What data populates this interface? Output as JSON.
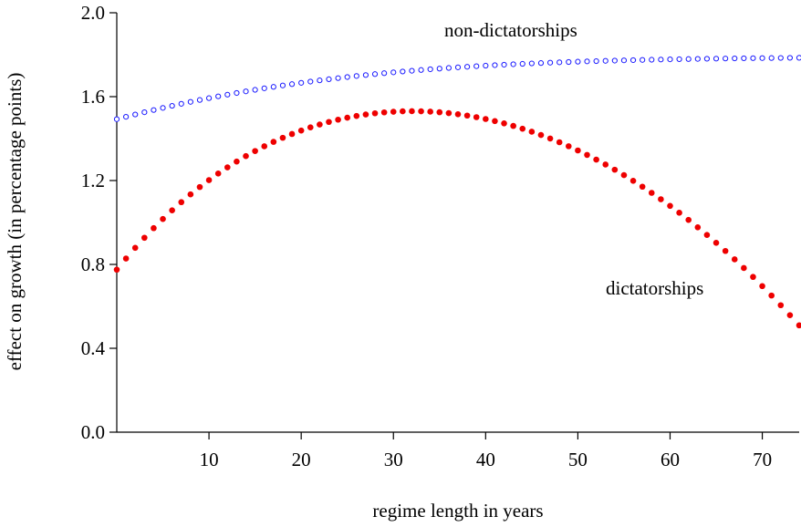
{
  "chart_data": {
    "type": "scatter",
    "title": "",
    "xlabel": "regime length in years",
    "ylabel": "effect on growth (in percentage points)",
    "xlim": [
      0,
      74
    ],
    "ylim": [
      0,
      2.0
    ],
    "xticks": [
      "10",
      "20",
      "30",
      "40",
      "50",
      "60",
      "70"
    ],
    "xtick_values": [
      10,
      20,
      30,
      40,
      50,
      60,
      70
    ],
    "yticks": [
      "0.0",
      "0.4",
      "0.8",
      "1.2",
      "1.6",
      "2.0"
    ],
    "ytick_values": [
      0.0,
      0.4,
      0.8,
      1.2,
      1.6,
      2.0
    ],
    "grid": false,
    "series": [
      {
        "name": "non-dictatorships",
        "marker": "open-circle",
        "color": "#1a1aff",
        "x": [
          0,
          1,
          2,
          3,
          4,
          5,
          6,
          7,
          8,
          9,
          10,
          11,
          12,
          13,
          14,
          15,
          16,
          17,
          18,
          19,
          20,
          21,
          22,
          23,
          24,
          25,
          26,
          27,
          28,
          29,
          30,
          31,
          32,
          33,
          34,
          35,
          36,
          37,
          38,
          39,
          40,
          41,
          42,
          43,
          44,
          45,
          46,
          47,
          48,
          49,
          50,
          51,
          52,
          53,
          54,
          55,
          56,
          57,
          58,
          59,
          60,
          61,
          62,
          63,
          64,
          65,
          66,
          67,
          68,
          69,
          70,
          71,
          72,
          73,
          74
        ],
        "y": [
          1.4925,
          1.5039,
          1.5149,
          1.5257,
          1.5361,
          1.5463,
          1.5562,
          1.5658,
          1.5751,
          1.5841,
          1.5929,
          1.6013,
          1.6095,
          1.6175,
          1.6251,
          1.6325,
          1.6397,
          1.6466,
          1.6533,
          1.6597,
          1.6659,
          1.6719,
          1.6776,
          1.6831,
          1.6884,
          1.6935,
          1.6984,
          1.703,
          1.7075,
          1.7118,
          1.7159,
          1.7198,
          1.7235,
          1.7271,
          1.7305,
          1.7337,
          1.7368,
          1.7397,
          1.7425,
          1.7452,
          1.7477,
          1.7501,
          1.7523,
          1.7545,
          1.7565,
          1.7585,
          1.7603,
          1.762,
          1.7637,
          1.7652,
          1.7667,
          1.7681,
          1.7694,
          1.7707,
          1.7719,
          1.773,
          1.7741,
          1.7751,
          1.776,
          1.7769,
          1.7778,
          1.7786,
          1.7793,
          1.78,
          1.7807,
          1.7813,
          1.7819,
          1.7824,
          1.7829,
          1.7834,
          1.7838,
          1.7842,
          1.7846,
          1.785,
          1.7853
        ]
      },
      {
        "name": "dictatorships",
        "marker": "filled-circle",
        "color": "#ee0000",
        "x": [
          0,
          1,
          2,
          3,
          4,
          5,
          6,
          7,
          8,
          9,
          10,
          11,
          12,
          13,
          14,
          15,
          16,
          17,
          18,
          19,
          20,
          21,
          22,
          23,
          24,
          25,
          26,
          27,
          28,
          29,
          30,
          31,
          32,
          33,
          34,
          35,
          36,
          37,
          38,
          39,
          40,
          41,
          42,
          43,
          44,
          45,
          46,
          47,
          48,
          49,
          50,
          51,
          52,
          53,
          54,
          55,
          56,
          57,
          58,
          59,
          60,
          61,
          62,
          63,
          64,
          65,
          66,
          67,
          68,
          69,
          70,
          71,
          72,
          73,
          74
        ],
        "y": [
          0.775,
          0.8282,
          0.8789,
          0.9271,
          0.9729,
          1.0164,
          1.0577,
          1.0968,
          1.1339,
          1.169,
          1.2021,
          1.2334,
          1.2628,
          1.2905,
          1.3164,
          1.3407,
          1.3633,
          1.3843,
          1.4038,
          1.4218,
          1.4383,
          1.4534,
          1.467,
          1.4793,
          1.4902,
          1.4997,
          1.508,
          1.5149,
          1.5206,
          1.525,
          1.5281,
          1.53,
          1.5307,
          1.5302,
          1.5285,
          1.5256,
          1.5215,
          1.5162,
          1.5098,
          1.5022,
          1.4935,
          1.4836,
          1.4726,
          1.4604,
          1.4471,
          1.4327,
          1.4171,
          1.4004,
          1.3826,
          1.3636,
          1.3435,
          1.3222,
          1.2998,
          1.2763,
          1.2516,
          1.2258,
          1.1988,
          1.1706,
          1.1413,
          1.1108,
          1.0791,
          1.0463,
          1.0122,
          0.977,
          0.9406,
          0.903,
          0.8641,
          0.8241,
          0.7828,
          0.7403,
          0.6966,
          0.6516,
          0.6054,
          0.558,
          0.5093
        ],
        "y_scale_note": "",
        "y_display": [
          0.775,
          0.8282,
          0.8789,
          0.9271,
          0.9729,
          1.0164,
          1.0577,
          1.0968,
          1.1339,
          1.169,
          1.2021,
          1.2334,
          1.2628,
          1.2905,
          1.3164,
          1.3407,
          1.3633,
          1.3843,
          1.4038,
          1.4218,
          1.4383,
          1.4534,
          1.467,
          1.4793,
          1.4902,
          1.4997,
          1.508,
          1.5149,
          1.5206,
          1.525,
          1.5281,
          1.53,
          1.5307,
          1.5302,
          1.5285,
          1.5256,
          1.5215,
          1.5162,
          1.5098,
          1.5022,
          1.4935,
          1.4836,
          1.4726,
          1.4604,
          1.4471,
          1.4327,
          1.4171,
          1.4004,
          1.3826,
          1.3636,
          1.3435,
          1.3222,
          1.2998,
          1.2763,
          1.2516,
          1.2258,
          1.1988,
          1.1706,
          1.1413,
          1.1108,
          1.0791,
          1.0463,
          1.0122,
          0.977,
          0.9406,
          0.903,
          0.8641,
          0.8241,
          0.7828,
          0.7403,
          0.6966,
          0.6516,
          0.6054,
          0.558,
          0.5093
        ]
      }
    ],
    "annotations": [
      {
        "text": "non-dictatorships",
        "series": "non-dictatorships"
      },
      {
        "text": "dictatorships",
        "series": "dictatorships"
      }
    ]
  }
}
